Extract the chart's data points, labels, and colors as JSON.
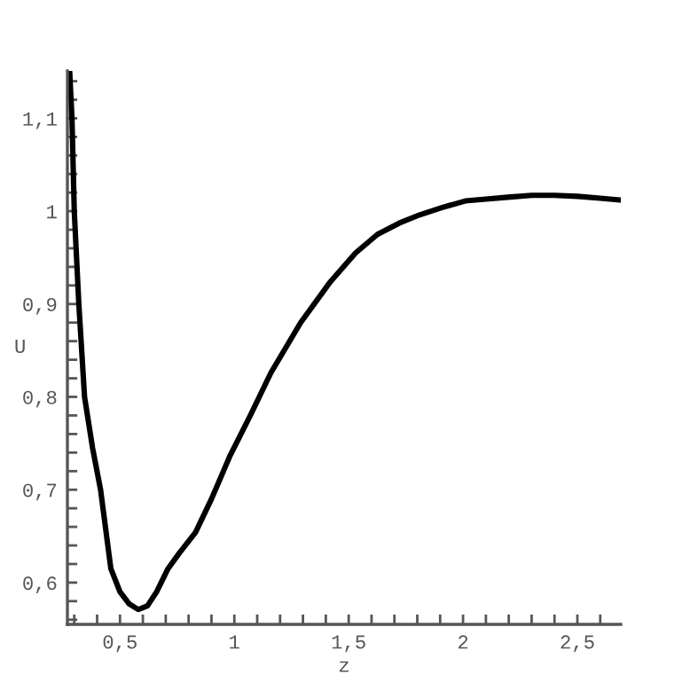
{
  "chart_data": {
    "type": "line",
    "xlabel": "z",
    "ylabel": "U",
    "xlim": [
      0.27,
      2.69
    ],
    "ylim": [
      0.555,
      1.151
    ],
    "xticks": [
      {
        "value": 0.3,
        "label": null
      },
      {
        "value": 0.4,
        "label": null
      },
      {
        "value": 0.5,
        "label": "0,5"
      },
      {
        "value": 0.6,
        "label": null
      },
      {
        "value": 0.7,
        "label": null
      },
      {
        "value": 0.8,
        "label": null
      },
      {
        "value": 0.9,
        "label": null
      },
      {
        "value": 1,
        "label": "1"
      },
      {
        "value": 1.1,
        "label": null
      },
      {
        "value": 1.2,
        "label": null
      },
      {
        "value": 1.3,
        "label": null
      },
      {
        "value": 1.4,
        "label": null
      },
      {
        "value": 1.5,
        "label": "1,5"
      },
      {
        "value": 1.6,
        "label": null
      },
      {
        "value": 1.7,
        "label": null
      },
      {
        "value": 1.8,
        "label": null
      },
      {
        "value": 1.9,
        "label": null
      },
      {
        "value": 2,
        "label": "2"
      },
      {
        "value": 2.1,
        "label": null
      },
      {
        "value": 2.2,
        "label": null
      },
      {
        "value": 2.3,
        "label": null
      },
      {
        "value": 2.4,
        "label": null
      },
      {
        "value": 2.5,
        "label": "2,5"
      },
      {
        "value": 2.6,
        "label": null
      }
    ],
    "yticks": [
      {
        "value": 0.56,
        "label": null
      },
      {
        "value": 0.58,
        "label": null
      },
      {
        "value": 0.6,
        "label": "0,6"
      },
      {
        "value": 0.62,
        "label": null
      },
      {
        "value": 0.64,
        "label": null
      },
      {
        "value": 0.66,
        "label": null
      },
      {
        "value": 0.68,
        "label": null
      },
      {
        "value": 0.7,
        "label": "0,7"
      },
      {
        "value": 0.72,
        "label": null
      },
      {
        "value": 0.74,
        "label": null
      },
      {
        "value": 0.76,
        "label": null
      },
      {
        "value": 0.78,
        "label": null
      },
      {
        "value": 0.8,
        "label": "0,8"
      },
      {
        "value": 0.82,
        "label": null
      },
      {
        "value": 0.84,
        "label": null
      },
      {
        "value": 0.86,
        "label": null
      },
      {
        "value": 0.88,
        "label": null
      },
      {
        "value": 0.9,
        "label": "0,9"
      },
      {
        "value": 0.92,
        "label": null
      },
      {
        "value": 0.94,
        "label": null
      },
      {
        "value": 0.96,
        "label": null
      },
      {
        "value": 0.98,
        "label": null
      },
      {
        "value": 1,
        "label": "1"
      },
      {
        "value": 1.02,
        "label": null
      },
      {
        "value": 1.04,
        "label": null
      },
      {
        "value": 1.06,
        "label": null
      },
      {
        "value": 1.08,
        "label": null
      },
      {
        "value": 1.1,
        "label": "1,1"
      },
      {
        "value": 1.12,
        "label": null
      },
      {
        "value": 1.14,
        "label": null
      }
    ],
    "grid": false,
    "legend": false,
    "marker": "none",
    "line_style": "solid",
    "series": [
      {
        "color": "#000000",
        "x": [
          0.28,
          0.29,
          0.3,
          0.32,
          0.345,
          0.38,
          0.415,
          0.46,
          0.5,
          0.54,
          0.58,
          0.62,
          0.66,
          0.71,
          0.76,
          0.83,
          0.9,
          0.98,
          1.07,
          1.16,
          1.29,
          1.42,
          1.53,
          1.626,
          1.72,
          1.81,
          1.91,
          2.01,
          2.1,
          2.195,
          2.3,
          2.4,
          2.5,
          2.6,
          2.686
        ],
        "values": [
          1.15,
          1.1,
          1.0,
          0.9,
          0.8,
          0.745,
          0.7,
          0.615,
          0.59,
          0.577,
          0.571,
          0.575,
          0.59,
          0.615,
          0.632,
          0.654,
          0.69,
          0.736,
          0.78,
          0.826,
          0.88,
          0.924,
          0.955,
          0.975,
          0.987,
          0.996,
          1.004,
          1.011,
          1.013,
          1.015,
          1.017,
          1.017,
          1.016,
          1.014,
          1.012
        ]
      }
    ]
  }
}
